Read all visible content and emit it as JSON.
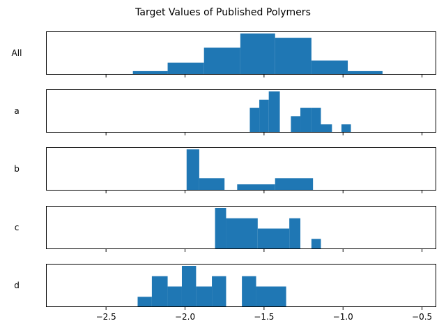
{
  "chart_data": {
    "type": "bar",
    "title": "Target Values of Published Polymers",
    "xlim": [
      -2.88,
      -0.41
    ],
    "xticks": [
      -2.5,
      -2.0,
      -1.5,
      -1.0,
      -0.5
    ],
    "xtick_labels": [
      "−2.5",
      "−2.0",
      "−1.5",
      "−1.0",
      "−0.5"
    ],
    "color": "#1f77b4",
    "grid": false,
    "panels": [
      {
        "label": "All",
        "bins": [
          {
            "x0": -2.56,
            "x1": -2.33,
            "value": 1
          },
          {
            "x0": -2.33,
            "x1": -2.11,
            "value": 5
          },
          {
            "x0": -2.11,
            "x1": -1.88,
            "value": 17
          },
          {
            "x0": -1.88,
            "x1": -1.65,
            "value": 38
          },
          {
            "x0": -1.65,
            "x1": -1.43,
            "value": 58
          },
          {
            "x0": -1.43,
            "x1": -1.2,
            "value": 52
          },
          {
            "x0": -1.2,
            "x1": -0.97,
            "value": 20
          },
          {
            "x0": -0.97,
            "x1": -0.75,
            "value": 5
          },
          {
            "x0": -0.75,
            "x1": -0.52,
            "value": 1
          }
        ]
      },
      {
        "label": "a",
        "bins": [
          {
            "x0": -1.59,
            "x1": -1.53,
            "value": 6
          },
          {
            "x0": -1.53,
            "x1": -1.47,
            "value": 8
          },
          {
            "x0": -1.47,
            "x1": -1.4,
            "value": 10
          },
          {
            "x0": -1.33,
            "x1": -1.27,
            "value": 4
          },
          {
            "x0": -1.27,
            "x1": -1.2,
            "value": 6
          },
          {
            "x0": -1.2,
            "x1": -1.14,
            "value": 6
          },
          {
            "x0": -1.14,
            "x1": -1.07,
            "value": 2
          },
          {
            "x0": -1.01,
            "x1": -0.95,
            "value": 2
          }
        ]
      },
      {
        "label": "b",
        "bins": [
          {
            "x0": -1.99,
            "x1": -1.91,
            "value": 10
          },
          {
            "x0": -1.91,
            "x1": -1.75,
            "value": 3
          },
          {
            "x0": -1.67,
            "x1": -1.43,
            "value": 1.5
          },
          {
            "x0": -1.43,
            "x1": -1.19,
            "value": 3
          }
        ]
      },
      {
        "label": "c",
        "bins": [
          {
            "x0": -1.81,
            "x1": -1.74,
            "value": 10
          },
          {
            "x0": -1.74,
            "x1": -1.54,
            "value": 7.5
          },
          {
            "x0": -1.54,
            "x1": -1.34,
            "value": 5
          },
          {
            "x0": -1.34,
            "x1": -1.27,
            "value": 7.5
          },
          {
            "x0": -1.2,
            "x1": -1.14,
            "value": 2.5
          }
        ]
      },
      {
        "label": "d",
        "bins": [
          {
            "x0": -2.3,
            "x1": -2.21,
            "value": 1
          },
          {
            "x0": -2.21,
            "x1": -2.11,
            "value": 3
          },
          {
            "x0": -2.11,
            "x1": -2.02,
            "value": 2
          },
          {
            "x0": -2.02,
            "x1": -1.93,
            "value": 4
          },
          {
            "x0": -1.93,
            "x1": -1.83,
            "value": 2
          },
          {
            "x0": -1.83,
            "x1": -1.74,
            "value": 3
          },
          {
            "x0": -1.64,
            "x1": -1.55,
            "value": 3
          },
          {
            "x0": -1.55,
            "x1": -1.36,
            "value": 2
          }
        ]
      }
    ]
  }
}
